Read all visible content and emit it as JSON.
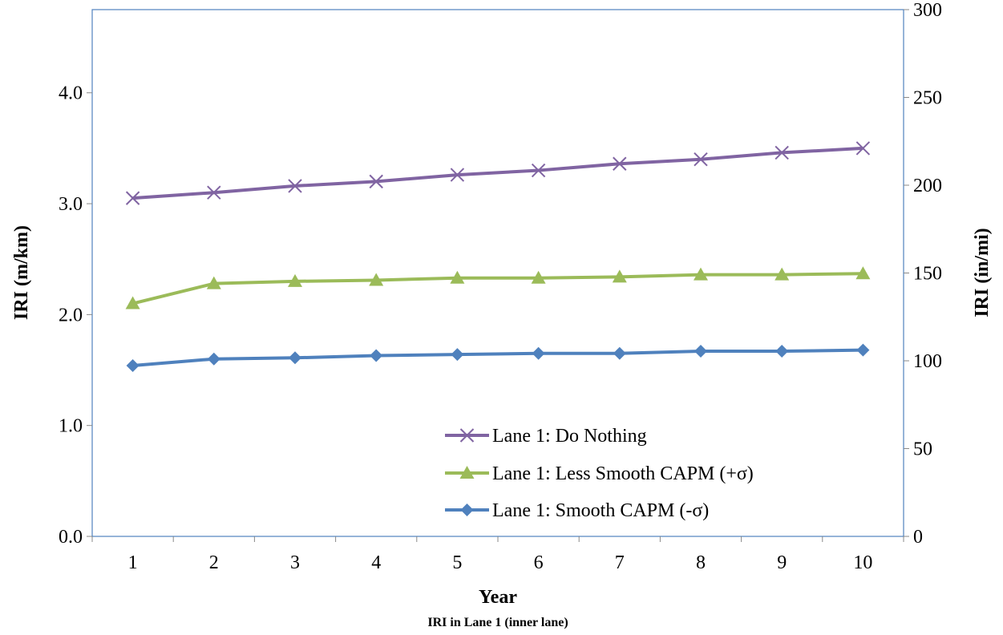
{
  "chart_data": {
    "type": "line",
    "title": "",
    "caption": "IRI in Lane 1 (inner lane)",
    "xlabel": "Year",
    "ylabel": "IRI (m/km)",
    "y2label": "IRI (in/mi)",
    "categories": [
      "1",
      "2",
      "3",
      "4",
      "5",
      "6",
      "7",
      "8",
      "9",
      "10"
    ],
    "ylim": [
      0,
      4.75
    ],
    "y_ticks": [
      "0.0",
      "1.0",
      "2.0",
      "3.0",
      "4.0"
    ],
    "y2lim": [
      0,
      300
    ],
    "y2_ticks": [
      "0",
      "50",
      "100",
      "150",
      "200",
      "250",
      "300"
    ],
    "grid": false,
    "legend_position": "bottom-center",
    "series": [
      {
        "name": "Lane 1: Do Nothing",
        "color": "#8064A2",
        "marker": "x",
        "values": [
          3.05,
          3.1,
          3.16,
          3.2,
          3.26,
          3.3,
          3.36,
          3.4,
          3.46,
          3.5
        ]
      },
      {
        "name": "Lane 1: Less Smooth CAPM (+σ)",
        "color": "#9BBB59",
        "marker": "triangle",
        "values": [
          2.1,
          2.28,
          2.3,
          2.31,
          2.33,
          2.33,
          2.34,
          2.36,
          2.36,
          2.37
        ]
      },
      {
        "name": "Lane 1: Smooth CAPM (-σ)",
        "color": "#4F81BD",
        "marker": "diamond",
        "values": [
          1.54,
          1.6,
          1.61,
          1.63,
          1.64,
          1.65,
          1.65,
          1.67,
          1.67,
          1.68
        ]
      }
    ]
  }
}
